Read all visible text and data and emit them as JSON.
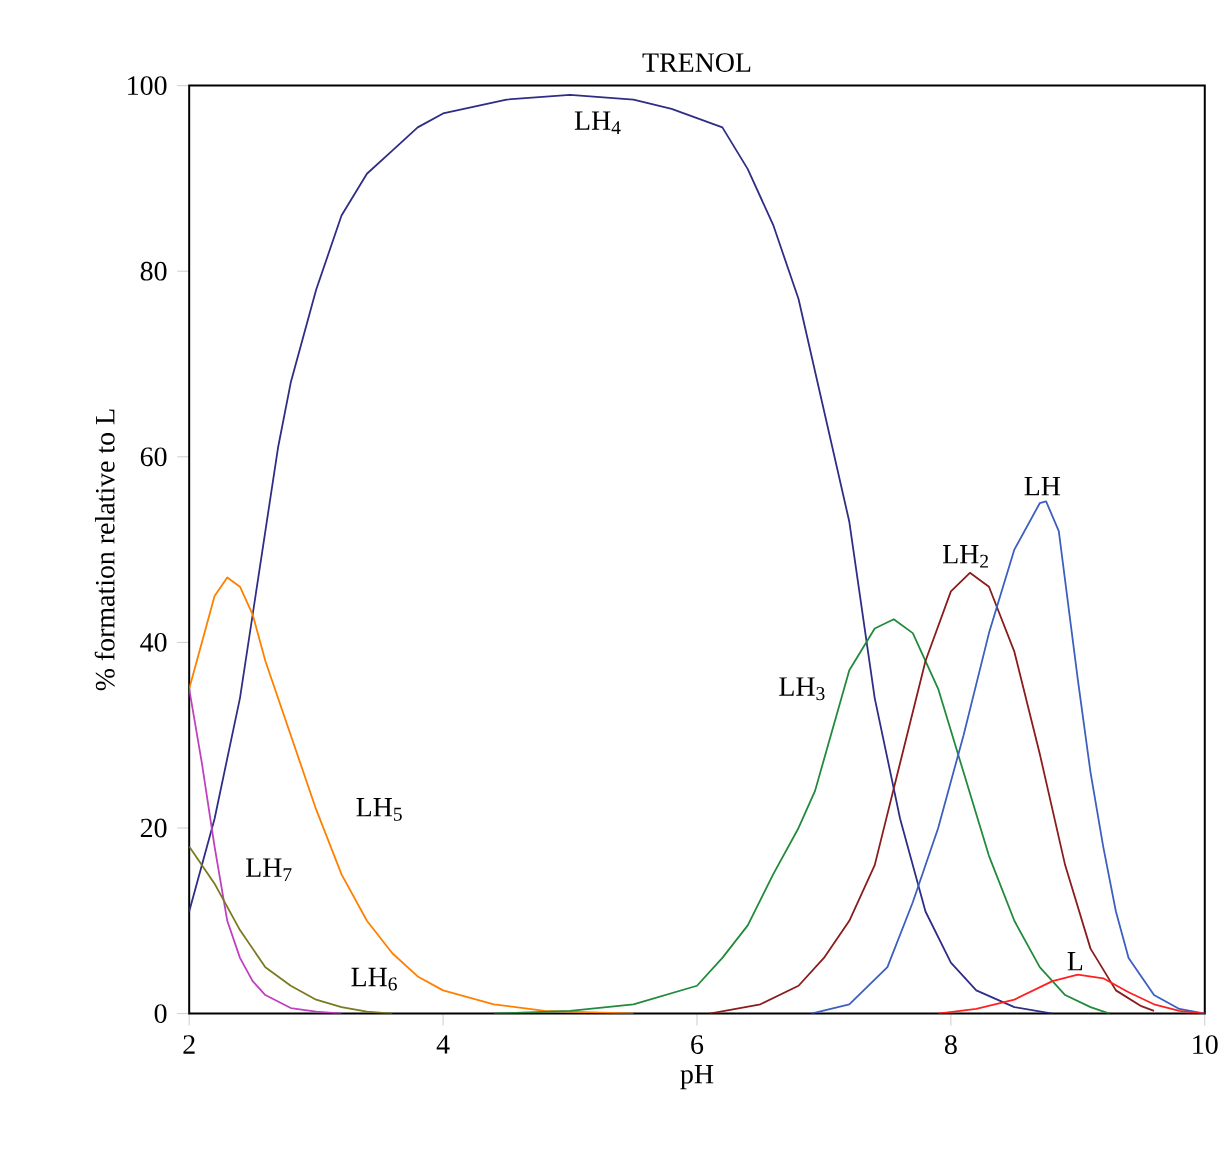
{
  "chart_data": {
    "type": "line",
    "title": "TRENOL",
    "xlabel": "pH",
    "ylabel": "% formation relative to L",
    "xlim": [
      2,
      10
    ],
    "ylim": [
      0,
      100
    ],
    "xticks": [
      2,
      4,
      6,
      8,
      10
    ],
    "yticks": [
      0,
      20,
      40,
      60,
      80,
      100
    ],
    "grid": false,
    "legend": false,
    "marker": "none",
    "line_style": "solid",
    "series": [
      {
        "name": "LH$_{4}$",
        "color": "#2e2e86",
        "x": [
          2.0,
          2.2,
          2.4,
          2.6,
          2.7,
          2.8,
          3.0,
          3.2,
          3.4,
          3.6,
          3.8,
          4.0,
          4.5,
          5.0,
          5.5,
          5.8,
          6.0,
          6.2,
          6.4,
          6.6,
          6.8,
          7.0,
          7.2,
          7.4,
          7.6,
          7.8,
          8.0,
          8.2,
          8.5,
          8.8
        ],
        "values": [
          11,
          21,
          34,
          52,
          61,
          68,
          78,
          86,
          90.5,
          93,
          95.5,
          97,
          98.5,
          99,
          98.5,
          97.5,
          96.5,
          95.5,
          91,
          85,
          77,
          65,
          53,
          34,
          21,
          11,
          5.5,
          2.5,
          0.7,
          0
        ]
      },
      {
        "name": "LH$_{5}$",
        "color": "#ff8000",
        "x": [
          2.0,
          2.1,
          2.2,
          2.3,
          2.4,
          2.5,
          2.6,
          2.8,
          3.0,
          3.2,
          3.4,
          3.6,
          3.8,
          4.0,
          4.4,
          4.8,
          5.5
        ],
        "values": [
          35,
          40,
          45,
          47,
          46,
          43,
          38,
          30,
          22,
          15,
          10,
          6.5,
          4,
          2.5,
          1,
          0.3,
          0
        ]
      },
      {
        "name": "LH$_{7}$",
        "color": "#c040c0",
        "x": [
          2.0,
          2.1,
          2.2,
          2.3,
          2.4,
          2.5,
          2.6,
          2.8,
          3.0,
          3.2
        ],
        "values": [
          35,
          27,
          18,
          10,
          6,
          3.5,
          2,
          0.6,
          0.2,
          0
        ]
      },
      {
        "name": "LH$_{6}$",
        "color": "#7a7a20",
        "x": [
          2.0,
          2.2,
          2.4,
          2.6,
          2.8,
          3.0,
          3.2,
          3.4,
          3.6
        ],
        "values": [
          18,
          14,
          9,
          5,
          3,
          1.5,
          0.7,
          0.2,
          0
        ]
      },
      {
        "name": "LH$_{3}$",
        "color": "#228b3b",
        "x": [
          4.4,
          5.0,
          5.5,
          6.0,
          6.2,
          6.4,
          6.6,
          6.8,
          6.93,
          7.2,
          7.4,
          7.55,
          7.7,
          7.9,
          8.1,
          8.3,
          8.5,
          8.7,
          8.9,
          9.1,
          9.25
        ],
        "values": [
          0,
          0.3,
          1,
          3,
          6,
          9.5,
          15,
          20,
          24,
          37,
          41.5,
          42.5,
          41,
          35,
          26,
          17,
          10,
          5,
          2,
          0.7,
          0
        ]
      },
      {
        "name": "LH$_{2}$",
        "color": "#8b1c1c",
        "x": [
          6.1,
          6.5,
          6.8,
          7.0,
          7.2,
          7.4,
          7.6,
          7.8,
          8.0,
          8.15,
          8.3,
          8.5,
          8.7,
          8.9,
          9.1,
          9.3,
          9.5,
          9.6
        ],
        "values": [
          0,
          1,
          3,
          6,
          10,
          16,
          27,
          38,
          45.5,
          47.5,
          46,
          39,
          28,
          16,
          7,
          2.5,
          0.8,
          0.3
        ]
      },
      {
        "name": "LH",
        "color": "#3c5fc0",
        "x": [
          6.9,
          7.2,
          7.5,
          7.7,
          7.9,
          8.1,
          8.3,
          8.5,
          8.7,
          8.75,
          8.85,
          9.0,
          9.1,
          9.2,
          9.3,
          9.4,
          9.6,
          9.8,
          10.0
        ],
        "values": [
          0,
          1,
          5,
          12,
          20,
          30,
          41,
          50,
          55,
          55.2,
          52,
          36,
          26,
          18,
          11,
          6,
          2,
          0.5,
          0
        ]
      },
      {
        "name": "L",
        "color": "#ff2020",
        "x": [
          7.9,
          8.2,
          8.5,
          8.8,
          9.0,
          9.2,
          9.4,
          9.6,
          9.8,
          10.0
        ],
        "values": [
          0,
          0.5,
          1.5,
          3.5,
          4.2,
          3.8,
          2.3,
          1,
          0.3,
          0
        ]
      }
    ]
  }
}
